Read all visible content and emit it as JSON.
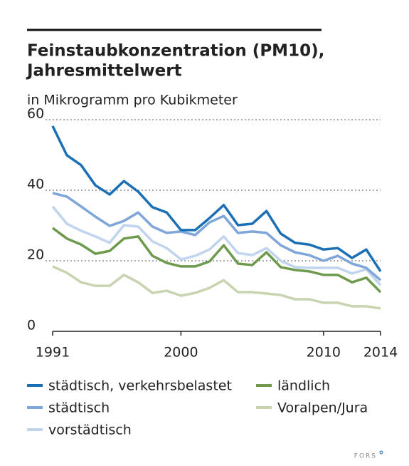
{
  "chart_data": {
    "type": "line",
    "title": [
      "Feinstaubkonzentration (PM10),",
      "Jahresmittelwert"
    ],
    "subtitle": "in Mikrogramm pro Kubikmeter",
    "source": "FORS",
    "x": [
      1991,
      1992,
      1993,
      1994,
      1995,
      1996,
      1997,
      1998,
      1999,
      2000,
      2001,
      2002,
      2003,
      2004,
      2005,
      2006,
      2007,
      2008,
      2009,
      2010,
      2011,
      2012,
      2013,
      2014
    ],
    "xlim": [
      1991,
      2014
    ],
    "xticks": [
      1991,
      2000,
      2010,
      2014
    ],
    "ylim": [
      0,
      60
    ],
    "yticks": [
      0,
      20,
      40,
      60
    ],
    "grid": true,
    "series": [
      {
        "name": "städtisch, verkehrsbelastet",
        "color": "#1a6fb5",
        "values": [
          58.2,
          49.9,
          47.1,
          41.4,
          38.8,
          42.6,
          39.6,
          35.2,
          33.7,
          28.7,
          28.7,
          32.1,
          35.8,
          30.1,
          30.5,
          34.1,
          27.7,
          25.1,
          24.6,
          23.2,
          23.6,
          20.8,
          23.2,
          17.0
        ]
      },
      {
        "name": "städtisch",
        "color": "#7ea6d9",
        "values": [
          39.2,
          38.2,
          35.4,
          32.5,
          29.9,
          31.3,
          33.7,
          29.7,
          27.9,
          28.3,
          27.3,
          30.9,
          32.7,
          27.9,
          28.3,
          27.9,
          24.4,
          22.4,
          21.6,
          20.0,
          21.4,
          19.2,
          18.0,
          14.5
        ]
      },
      {
        "name": "vorstädtisch",
        "color": "#c0d4ee",
        "values": [
          35.4,
          30.5,
          28.5,
          26.9,
          25.1,
          30.1,
          29.7,
          25.5,
          23.6,
          20.4,
          21.4,
          23.2,
          26.9,
          22.2,
          21.6,
          23.6,
          20.0,
          18.2,
          18.0,
          18.0,
          18.0,
          16.4,
          17.6,
          13.1
        ]
      },
      {
        "name": "ländlich",
        "color": "#6e9a4e",
        "values": [
          29.3,
          26.3,
          24.6,
          22.0,
          22.8,
          26.3,
          26.9,
          21.4,
          19.4,
          18.4,
          18.4,
          19.8,
          24.4,
          19.2,
          18.8,
          22.4,
          18.2,
          17.4,
          17.0,
          16.0,
          16.0,
          13.9,
          15.2,
          11.1
        ]
      },
      {
        "name": "Voralpen/Jura",
        "color": "#c8d3b0",
        "values": [
          18.4,
          16.6,
          13.9,
          12.9,
          12.9,
          16.0,
          13.9,
          10.9,
          11.5,
          10.1,
          10.9,
          12.3,
          14.5,
          11.1,
          11.1,
          10.7,
          10.3,
          9.1,
          9.1,
          8.1,
          8.1,
          7.1,
          7.1,
          6.5
        ]
      }
    ]
  }
}
